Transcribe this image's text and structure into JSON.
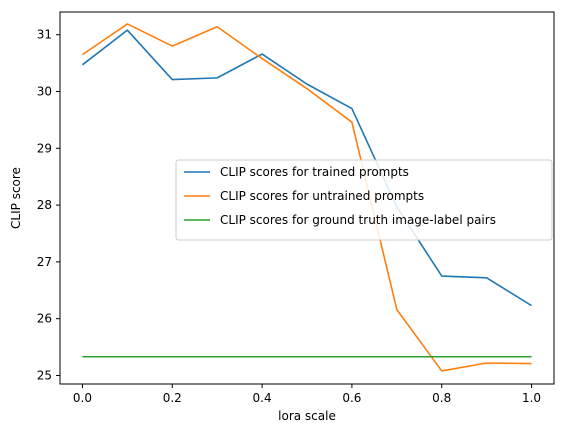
{
  "chart_data": {
    "type": "line",
    "xlabel": "lora scale",
    "ylabel": "CLIP score",
    "xlim": [
      -0.05,
      1.05
    ],
    "ylim": [
      24.85,
      31.4
    ],
    "xticks": [
      "0.0",
      "0.2",
      "0.4",
      "0.6",
      "0.8",
      "1.0"
    ],
    "yticks": [
      "25",
      "26",
      "27",
      "28",
      "29",
      "30",
      "31"
    ],
    "grid": false,
    "legend_position": "center-right",
    "x": [
      0.0,
      0.1,
      0.2,
      0.3,
      0.4,
      0.5,
      0.6,
      0.7,
      0.8,
      0.9,
      1.0
    ],
    "series": [
      {
        "name": "CLIP scores for trained prompts",
        "color": "#1f77b4",
        "values": [
          30.47,
          31.08,
          30.21,
          30.24,
          30.66,
          30.13,
          29.7,
          27.97,
          26.75,
          26.72,
          26.23
        ]
      },
      {
        "name": "CLIP scores for untrained prompts",
        "color": "#ff7f0e",
        "values": [
          30.65,
          31.19,
          30.8,
          31.14,
          30.58,
          30.05,
          29.46,
          26.16,
          25.08,
          25.22,
          25.21
        ]
      },
      {
        "name": "CLIP scores for ground truth image-label pairs",
        "color": "#2ca02c",
        "values": [
          25.33,
          25.33,
          25.33,
          25.33,
          25.33,
          25.33,
          25.33,
          25.33,
          25.33,
          25.33,
          25.33
        ]
      }
    ]
  }
}
